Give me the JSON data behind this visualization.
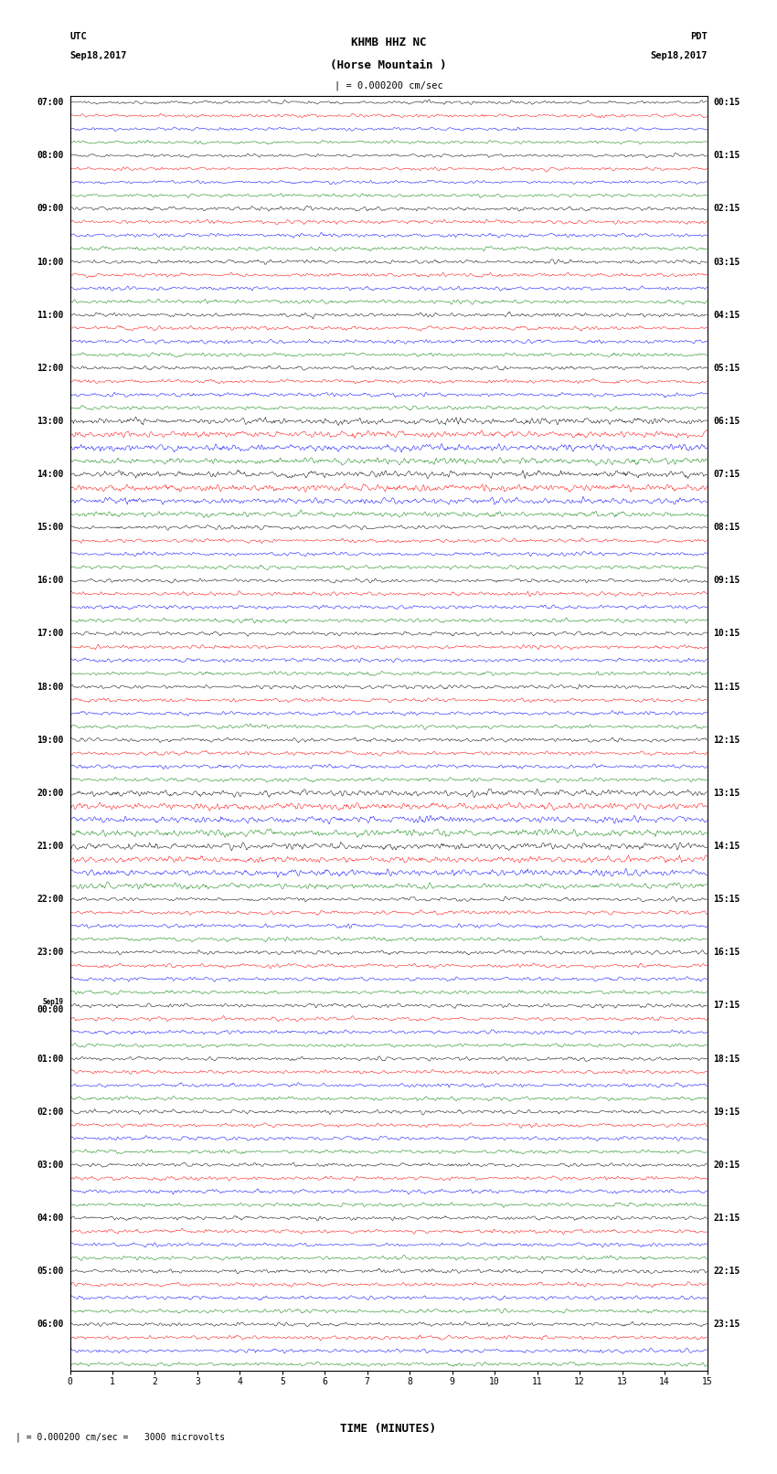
{
  "title_line1": "KHMB HHZ NC",
  "title_line2": "(Horse Mountain )",
  "title_line3": "| = 0.000200 cm/sec",
  "left_header1": "UTC",
  "left_header2": "Sep18,2017",
  "right_header1": "PDT",
  "right_header2": "Sep18,2017",
  "xlabel": "TIME (MINUTES)",
  "scale_label": "| = 0.000200 cm/sec =   3000 microvolts",
  "colors": [
    "black",
    "red",
    "blue",
    "green"
  ],
  "left_times": [
    "07:00",
    "08:00",
    "09:00",
    "10:00",
    "11:00",
    "12:00",
    "13:00",
    "14:00",
    "15:00",
    "16:00",
    "17:00",
    "18:00",
    "19:00",
    "20:00",
    "21:00",
    "22:00",
    "23:00",
    "Sep19\n00:00",
    "01:00",
    "02:00",
    "03:00",
    "04:00",
    "05:00",
    "06:00"
  ],
  "right_times": [
    "00:15",
    "01:15",
    "02:15",
    "03:15",
    "04:15",
    "05:15",
    "06:15",
    "07:15",
    "08:15",
    "09:15",
    "10:15",
    "11:15",
    "12:15",
    "13:15",
    "14:15",
    "15:15",
    "16:15",
    "17:15",
    "18:15",
    "19:15",
    "20:15",
    "21:15",
    "22:15",
    "23:15"
  ],
  "num_rows": 24,
  "traces_per_row": 4,
  "background_color": "white",
  "fig_width": 8.5,
  "fig_height": 16.13,
  "dpi": 100
}
